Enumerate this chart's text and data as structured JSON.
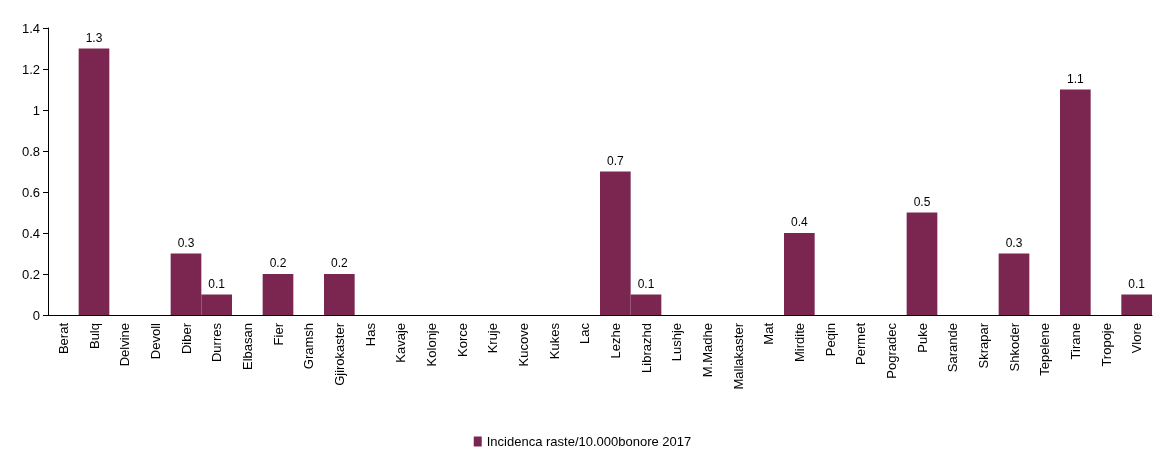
{
  "chart_data": {
    "type": "bar",
    "categories": [
      "Berat",
      "Bulq",
      "Delvine",
      "Devoll",
      "Diber",
      "Durres",
      "Elbasan",
      "Fier",
      "Gramsh",
      "Gjirokaster",
      "Has",
      "Kavaje",
      "Kolonje",
      "Korce",
      "Kruje",
      "Kucove",
      "Kukes",
      "Lac",
      "Lezhe",
      "Librazhd",
      "Lushje",
      "M.Madhe",
      "Mallakaster",
      "Mat",
      "Mirdite",
      "Peqin",
      "Permet",
      "Pogradec",
      "Puke",
      "Sarande",
      "Skrapar",
      "Shkoder",
      "Tepelene",
      "Tirane",
      "Tropoje",
      "Vlore"
    ],
    "series": [
      {
        "name": "Incidenca raste/10.000bonore 2017",
        "color": "#7b2650",
        "values": [
          0,
          1.3,
          0,
          0,
          0.3,
          0.1,
          0,
          0.2,
          0,
          0.2,
          0,
          0,
          0,
          0,
          0,
          0,
          0,
          0,
          0.7,
          0.1,
          0,
          0,
          0,
          0,
          0.4,
          0,
          0,
          0,
          0.5,
          0,
          0,
          0.3,
          0,
          1.1,
          0,
          0.1
        ],
        "value_labels": [
          null,
          "1.3",
          null,
          null,
          "0.3",
          "0.1",
          null,
          "0.2",
          null,
          "0.2",
          null,
          null,
          null,
          null,
          null,
          null,
          null,
          null,
          "0.7",
          "0.1",
          null,
          null,
          null,
          null,
          "0.4",
          null,
          null,
          null,
          "0.5",
          null,
          null,
          "0.3",
          null,
          "1.1",
          null,
          "0.1"
        ]
      }
    ],
    "ylim": [
      0,
      1.4
    ],
    "yticks": [
      0,
      0.2,
      0.4,
      0.6,
      0.8,
      1,
      1.2,
      1.4
    ],
    "grid": false,
    "legend": "bottom"
  }
}
